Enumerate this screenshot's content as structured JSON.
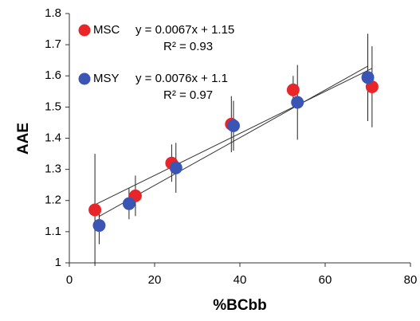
{
  "chart_data": {
    "type": "scatter",
    "x_label": "%BCbb",
    "y_label": "AAE",
    "xlim": [
      0,
      80
    ],
    "xticks": [
      0,
      20,
      40,
      60,
      80
    ],
    "ylim": [
      1,
      1.8
    ],
    "yticks": [
      1,
      1.1,
      1.2,
      1.3,
      1.4,
      1.5,
      1.6,
      1.7,
      1.8
    ],
    "series": [
      {
        "name": "MSC",
        "color": "#e8262a",
        "trend_label": "y = 0.0067x + 1.15",
        "r2_label": "R² = 0.93",
        "x": [
          6,
          15.5,
          24,
          38,
          52.5,
          71
        ],
        "values": [
          1.17,
          1.215,
          1.32,
          1.445,
          1.555,
          1.565
        ],
        "errors": [
          0.18,
          0.065,
          0.06,
          0.09,
          0.045,
          0.13
        ]
      },
      {
        "name": "MSY",
        "color": "#3a55b4",
        "trend_label": "y = 0.0076x + 1.1",
        "r2_label": "R² = 0.97",
        "x": [
          7,
          14,
          25,
          38.5,
          53.5,
          70
        ],
        "values": [
          1.12,
          1.19,
          1.305,
          1.44,
          1.515,
          1.595
        ],
        "errors": [
          0.06,
          0.05,
          0.08,
          0.08,
          0.12,
          0.14
        ]
      }
    ]
  }
}
